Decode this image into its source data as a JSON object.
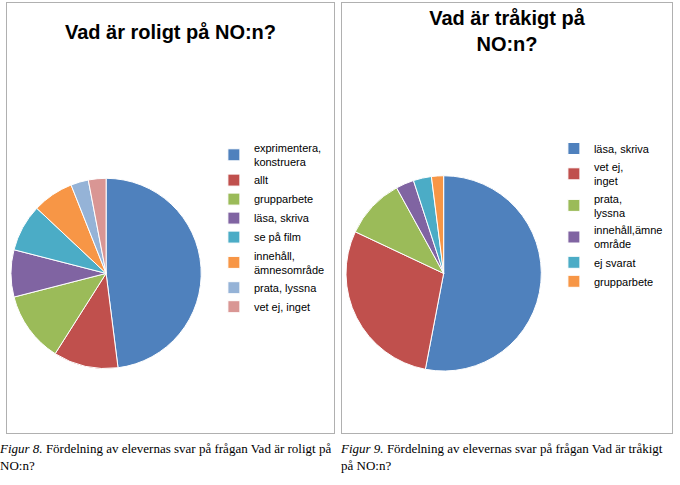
{
  "chart_data": [
    {
      "type": "pie",
      "title": "Vad är roligt på NO:n?",
      "categories": [
        "exprimentera, konstruera",
        "allt",
        "grupparbete",
        "läsa, skriva",
        "se på film",
        "innehåll, ämnesområde",
        "prata, lyssna",
        "vet ej, inget"
      ],
      "values": [
        48,
        11,
        12,
        8,
        8,
        7,
        3,
        3
      ],
      "colors": [
        "#4F81BD",
        "#C0504D",
        "#9BBB59",
        "#8064A2",
        "#4BACC6",
        "#F79646",
        "#95B3D7",
        "#D99694"
      ],
      "legend": "right",
      "caption": "Figur 8. Fördelning av elevernas svar på frågan Vad är roligt på NO:n?"
    },
    {
      "type": "pie",
      "title": "Vad är tråkigt på NO:n?",
      "categories": [
        "läsa, skriva",
        "vet ej, inget",
        "prata, lyssna",
        "innehåll,ämne område",
        "ej svarat",
        "grupparbete"
      ],
      "values": [
        53,
        29,
        10,
        3,
        3,
        2
      ],
      "colors": [
        "#4F81BD",
        "#C0504D",
        "#9BBB59",
        "#8064A2",
        "#4BACC6",
        "#F79646"
      ],
      "legend": "right",
      "caption": "Figur 9. Fördelning av elevernas svar på frågan Vad är tråkigt på NO:n?"
    }
  ]
}
